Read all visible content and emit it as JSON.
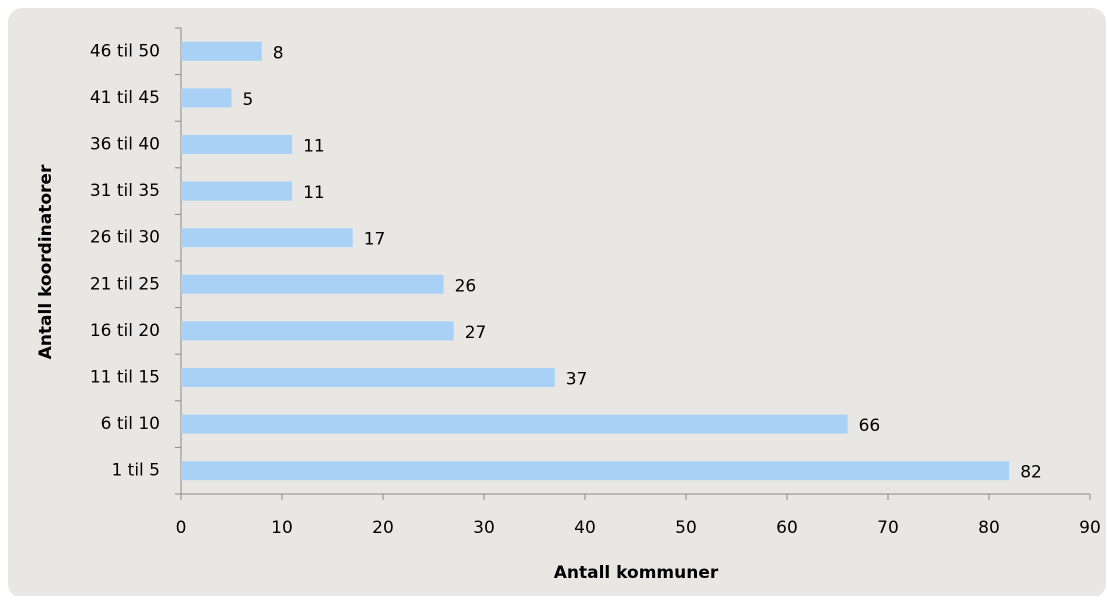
{
  "chart_data": {
    "type": "bar",
    "orientation": "horizontal",
    "categories": [
      "1 til 5",
      "6 til 10",
      "11 til 15",
      "16 til 20",
      "21 til 25",
      "26 til 30",
      "31 til 35",
      "36 til 40",
      "41 til 45",
      "46 til 50"
    ],
    "values": [
      82,
      66,
      37,
      27,
      26,
      17,
      11,
      11,
      5,
      8
    ],
    "color": "#a9d1f5",
    "xlim": [
      0,
      90
    ],
    "xticks": [
      0,
      10,
      20,
      30,
      40,
      50,
      60,
      70,
      80,
      90
    ],
    "xlabel": "Antall kommuner",
    "ylabel": "Antall koordinatorer"
  }
}
